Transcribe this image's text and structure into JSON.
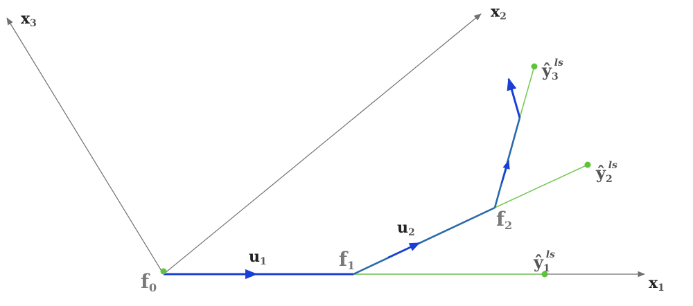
{
  "axes": {
    "x1": {
      "base": "x",
      "sub": "1"
    },
    "x2": {
      "base": "x",
      "sub": "2"
    },
    "x3": {
      "base": "x",
      "sub": "3"
    }
  },
  "points": {
    "f0": {
      "base": "f",
      "sub": "0"
    },
    "f1": {
      "base": "f",
      "sub": "1"
    },
    "f2": {
      "base": "f",
      "sub": "2"
    }
  },
  "vectors": {
    "u1": {
      "base": "u",
      "sub": "1"
    },
    "u2": {
      "base": "u",
      "sub": "2"
    }
  },
  "estimates": {
    "y1": {
      "base": "ŷ",
      "sub": "1",
      "sup": "ls"
    },
    "y2": {
      "base": "ŷ",
      "sub": "2",
      "sup": "ls"
    },
    "y3": {
      "base": "ŷ",
      "sub": "3",
      "sup": "ls"
    }
  },
  "colors": {
    "axis": "#707070",
    "path": "#1a3fd6",
    "estimate_line": "#7ac95a",
    "estimate_dot": "#5cc43a"
  }
}
